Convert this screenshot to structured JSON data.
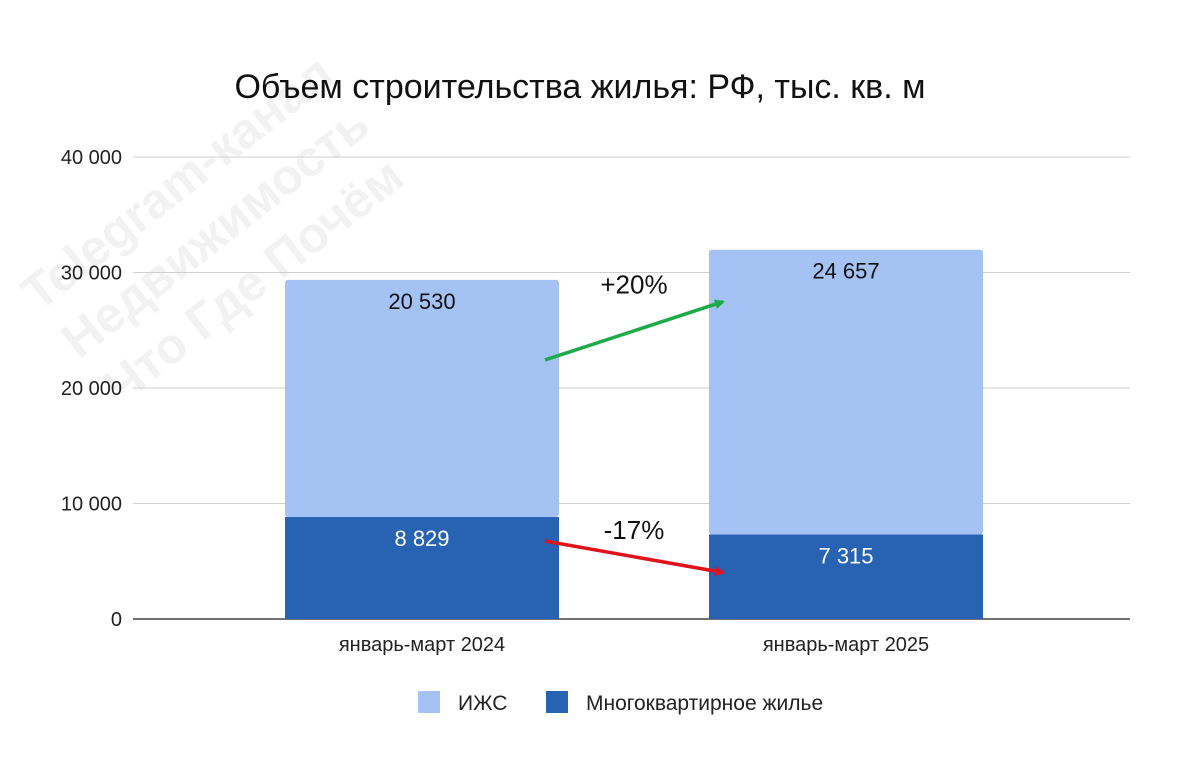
{
  "chart_data": {
    "type": "bar",
    "stacked": true,
    "title": "Объем строительства жилья: РФ, тыс. кв. м",
    "categories": [
      "январь-март 2024",
      "январь-март 2025"
    ],
    "series": [
      {
        "name": "Многоквартирное жилье",
        "values": [
          8829,
          7315
        ],
        "labels": [
          "8 829",
          "7 315"
        ],
        "color": "#2763b2",
        "label_color": "#ffffff"
      },
      {
        "name": "ИЖС",
        "values": [
          20530,
          24657
        ],
        "labels": [
          "20 530",
          "24 657"
        ],
        "color": "#a4c2f4",
        "label_color": "#111111"
      }
    ],
    "ylim": [
      0,
      40000
    ],
    "yticks": [
      0,
      10000,
      20000,
      30000,
      40000
    ],
    "ytick_labels": [
      "0",
      "10 000",
      "20 000",
      "30 000",
      "40 000"
    ],
    "grid": true,
    "legend_position": "bottom",
    "annotations": [
      {
        "text": "+20%",
        "color": "#1faa4a",
        "series": "ИЖС"
      },
      {
        "text": "-17%",
        "color": "#e0121c",
        "series": "Многоквартирное жилье"
      }
    ]
  },
  "watermark": [
    "Telegram-канал",
    "Недвижимость",
    "Что Где Почём"
  ]
}
